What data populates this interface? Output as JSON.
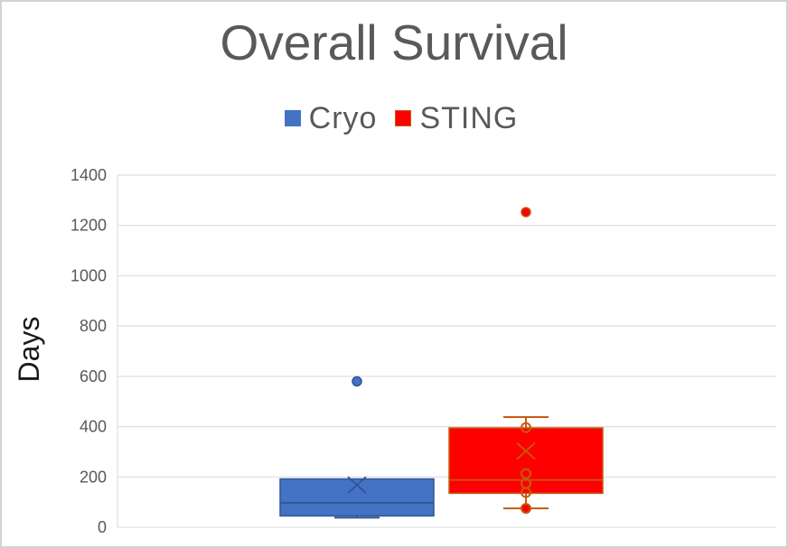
{
  "chart": {
    "title": "Overall Survival",
    "y_axis_title": "Days",
    "legend": [
      {
        "label": "Cryo",
        "color": "#4472C4"
      },
      {
        "label": "STING",
        "color": "#FF0000"
      }
    ]
  },
  "chart_data": {
    "type": "box",
    "title": "Overall Survival",
    "xlabel": "",
    "ylabel": "Days",
    "ylim": [
      0,
      1400
    ],
    "ytick_step": 200,
    "grid": true,
    "legend_position": "top",
    "colors": {
      "gridline": "#D9D9D9",
      "axis_line": "#D9D9D9",
      "tick_label": "#595959",
      "title": "#595959"
    },
    "series": [
      {
        "name": "Cryo",
        "fill": "#4472C4",
        "stroke": "#2F5597",
        "stats": {
          "min": 38,
          "q1": 45,
          "median": 97,
          "q3": 192,
          "max": 192,
          "mean": 168
        },
        "inner_points": [],
        "outliers": [
          580
        ]
      },
      {
        "name": "STING",
        "fill": "#FF0000",
        "stroke": "#C55A11",
        "stats": {
          "min": 75,
          "q1": 135,
          "median": 188,
          "q3": 395,
          "max": 438,
          "mean": 303
        },
        "inner_points": [
          {
            "value": 396,
            "style": "open"
          },
          {
            "value": 213,
            "style": "open"
          },
          {
            "value": 174,
            "style": "open"
          },
          {
            "value": 138,
            "style": "open"
          },
          {
            "value": 75,
            "style": "filled"
          }
        ],
        "outliers": [
          1253
        ]
      }
    ]
  }
}
